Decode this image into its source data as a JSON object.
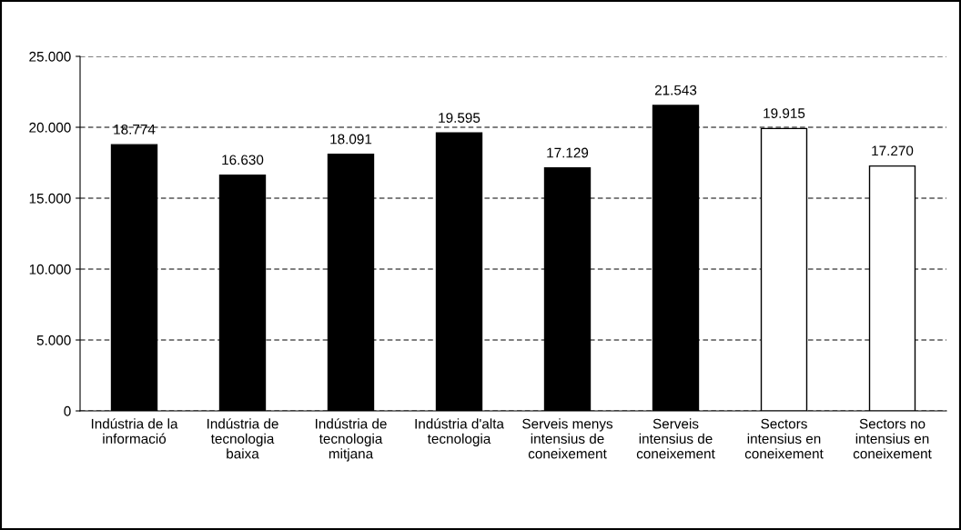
{
  "chart_data": {
    "type": "bar",
    "categories": [
      "Indústria de la\ninformació",
      "Indústria de\ntecnologia\nbaixa",
      "Indústria de\ntecnologia\nmitjana",
      "Indústria d'alta\ntecnologia",
      "Serveis menys\nintensius de\nconeixement",
      "Serveis\nintensius de\nconeixement",
      "Sectors\nintensius en\nconeixement",
      "Sectors no\nintensius en\nconeixement"
    ],
    "values": [
      18774,
      16630,
      18091,
      19595,
      17129,
      21543,
      19915,
      17270
    ],
    "value_labels": [
      "18.774",
      "16.630",
      "18.091",
      "19.595",
      "17.129",
      "21.543",
      "19.915",
      "17.270"
    ],
    "colors": [
      "#000000",
      "#000000",
      "#000000",
      "#000000",
      "#000000",
      "#000000",
      "#ffffff",
      "#ffffff"
    ],
    "ylim": [
      0,
      25000
    ],
    "yticks": [
      {
        "value": 0,
        "label": "0"
      },
      {
        "value": 5000,
        "label": "5.000"
      },
      {
        "value": 10000,
        "label": "10.000"
      },
      {
        "value": 15000,
        "label": "15.000"
      },
      {
        "value": 20000,
        "label": "20.000"
      },
      {
        "value": 25000,
        "label": "25.000"
      }
    ],
    "grid": "y",
    "line_style": "dashed"
  }
}
